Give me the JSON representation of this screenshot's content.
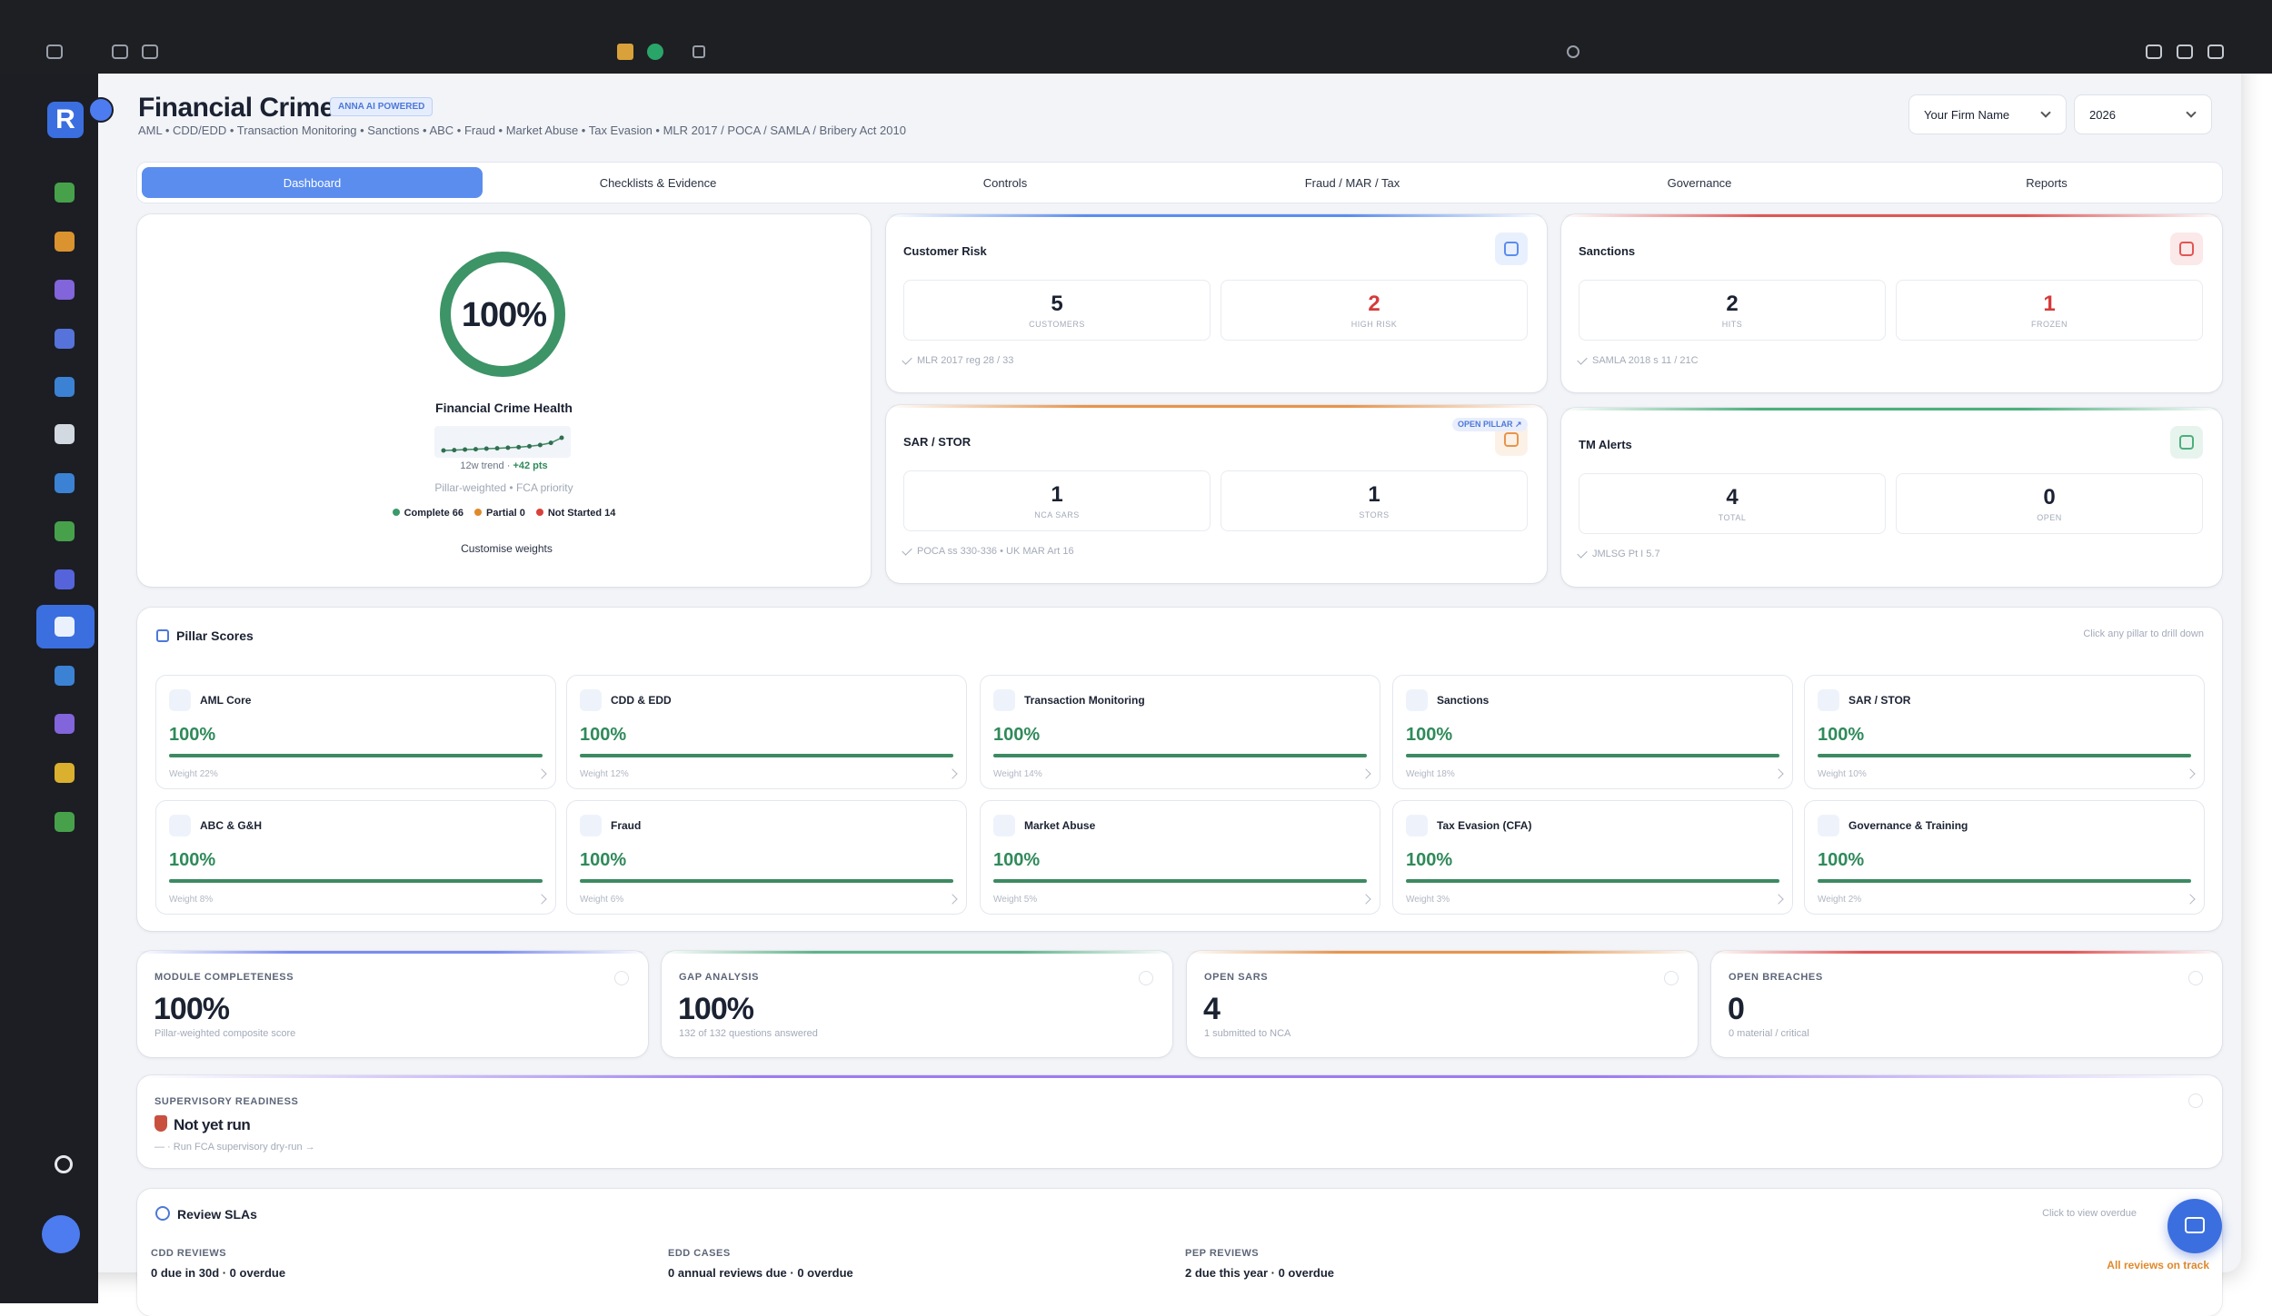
{
  "header": {
    "title": "Financial Crime",
    "badge": "ANNA AI POWERED",
    "subtitle": "AML • CDD/EDD • Transaction Monitoring • Sanctions • ABC • Fraud • Market Abuse • Tax Evasion • MLR 2017 / POCA / SAMLA / Bribery Act 2010",
    "firm_select": "Your Firm Name",
    "year_select": "2026"
  },
  "sidebar": {
    "logo": "R"
  },
  "tabs": [
    "Dashboard",
    "Checklists & Evidence",
    "Controls",
    "Fraud / MAR / Tax",
    "Governance",
    "Reports"
  ],
  "health": {
    "score": 100,
    "score_label": "100%",
    "label": "Financial Crime Health",
    "trend": [
      58,
      59,
      61,
      62,
      64,
      65,
      67,
      69,
      72,
      76,
      83,
      100
    ],
    "trend_label": "12w trend ·",
    "trend_delta": "+42 pts",
    "note": "Pillar-weighted • FCA priority",
    "legend": [
      {
        "label": "Complete",
        "count": 66,
        "color": "#3a9a6a"
      },
      {
        "label": "Partial",
        "count": 0,
        "color": "#e08a2c"
      },
      {
        "label": "Not Started",
        "count": 14,
        "color": "#d9413a"
      }
    ],
    "action": "Customise weights"
  },
  "cards": [
    {
      "title": "Customer Risk",
      "stats": [
        {
          "value": 5,
          "label": "CUSTOMERS",
          "color": "#1b2232"
        },
        {
          "value": 2,
          "label": "HIGH RISK",
          "color": "#d63a3a"
        }
      ],
      "ref": "MLR 2017 reg 28 / 33",
      "accent": "#5b8def"
    },
    {
      "title": "Sanctions",
      "stats": [
        {
          "value": 2,
          "label": "HITS",
          "color": "#1b2232"
        },
        {
          "value": 1,
          "label": "FROZEN",
          "color": "#d63a3a"
        }
      ],
      "ref": "SAMLA 2018 s 11 / 21C",
      "accent": "#e25555"
    },
    {
      "title": "SAR / STOR",
      "badge": "OPEN PILLAR ↗",
      "stats": [
        {
          "value": 1,
          "label": "NCA SARS",
          "color": "#1b2232"
        },
        {
          "value": 1,
          "label": "STORS",
          "color": "#1b2232"
        }
      ],
      "ref": "POCA ss 330-336 • UK MAR Art 16",
      "accent": "#e8944a"
    },
    {
      "title": "TM Alerts",
      "stats": [
        {
          "value": 4,
          "label": "TOTAL",
          "color": "#1b2232"
        },
        {
          "value": 0,
          "label": "OPEN",
          "color": "#1b2232"
        }
      ],
      "ref": "JMLSG Pt I 5.7",
      "accent": "#4caf7d"
    }
  ],
  "pillars": {
    "title": "Pillar Scores",
    "hint": "Click any pillar to drill down",
    "items": [
      {
        "name": "AML Core",
        "score": 100,
        "score_label": "100%",
        "weight": "Weight 22%"
      },
      {
        "name": "CDD & EDD",
        "score": 100,
        "score_label": "100%",
        "weight": "Weight 12%"
      },
      {
        "name": "Transaction Monitoring",
        "score": 100,
        "score_label": "100%",
        "weight": "Weight 14%"
      },
      {
        "name": "Sanctions",
        "score": 100,
        "score_label": "100%",
        "weight": "Weight 18%"
      },
      {
        "name": "SAR / STOR",
        "score": 100,
        "score_label": "100%",
        "weight": "Weight 10%"
      },
      {
        "name": "ABC & G&H",
        "score": 100,
        "score_label": "100%",
        "weight": "Weight 8%"
      },
      {
        "name": "Fraud",
        "score": 100,
        "score_label": "100%",
        "weight": "Weight 6%"
      },
      {
        "name": "Market Abuse",
        "score": 100,
        "score_label": "100%",
        "weight": "Weight 5%"
      },
      {
        "name": "Tax Evasion (CFA)",
        "score": 100,
        "score_label": "100%",
        "weight": "Weight 3%"
      },
      {
        "name": "Governance & Training",
        "score": 100,
        "score_label": "100%",
        "weight": "Weight 2%"
      }
    ]
  },
  "kpis": [
    {
      "title": "MODULE COMPLETENESS",
      "value": "100%",
      "note": "Pillar-weighted composite score",
      "accent": "#7a8cf0"
    },
    {
      "title": "GAP ANALYSIS",
      "value": "100%",
      "note": "132 of 132 questions answered",
      "accent": "#5fb38a"
    },
    {
      "title": "OPEN SARS",
      "value": 4,
      "note": "1 submitted to NCA",
      "accent": "#e8944a"
    },
    {
      "title": "OPEN BREACHES",
      "value": 0,
      "note": "0 material / critical",
      "accent": "#e25555"
    }
  ],
  "readiness": {
    "title": "SUPERVISORY READINESS",
    "value": "Not yet run",
    "note": "— · Run FCA supervisory dry-run →"
  },
  "review": {
    "title": "Review SLAs",
    "hint": "Click to view overdue",
    "items": [
      {
        "title": "CDD REVIEWS",
        "text": "0 due in 30d · 0 overdue"
      },
      {
        "title": "EDD CASES",
        "text": "0 annual reviews due · 0 overdue"
      },
      {
        "title": "PEP REVIEWS",
        "text": "2 due this year · 0 overdue"
      }
    ],
    "status": "All reviews on track"
  }
}
